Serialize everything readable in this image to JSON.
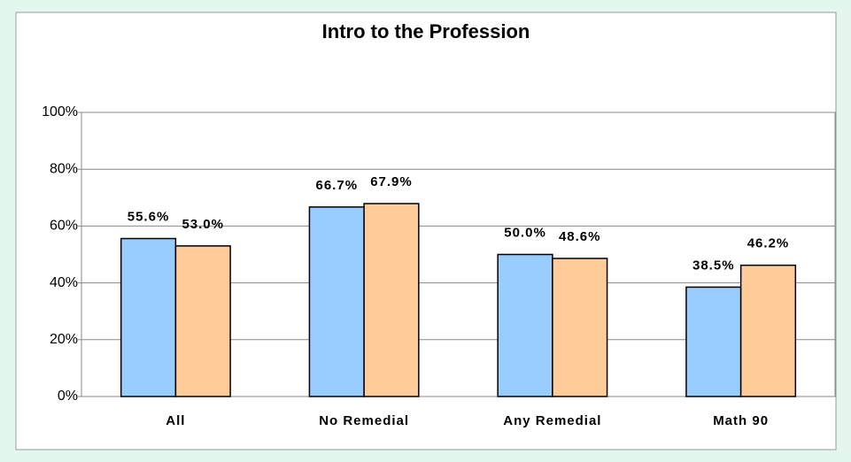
{
  "chart_data": {
    "type": "bar",
    "title": "Intro to the Profession",
    "categories": [
      "All",
      "No Remedial",
      "Any Remedial",
      "Math 90"
    ],
    "series": [
      {
        "color": "#99ccff",
        "values": [
          55.6,
          66.7,
          50.0,
          38.5
        ],
        "value_labels": [
          "55.6%",
          "66.7%",
          "50.0%",
          "38.5%"
        ]
      },
      {
        "color": "#ffcc99",
        "values": [
          53.0,
          67.9,
          48.6,
          46.2
        ],
        "value_labels": [
          "53.0%",
          "67.9%",
          "48.6%",
          "46.2%"
        ]
      }
    ],
    "ylim": [
      0,
      100
    ],
    "yticks": [
      {
        "value": 0,
        "label": "0%"
      },
      {
        "value": 20,
        "label": "20%"
      },
      {
        "value": 40,
        "label": "40%"
      },
      {
        "value": 60,
        "label": "60%"
      },
      {
        "value": 80,
        "label": "80%"
      },
      {
        "value": 100,
        "label": "100%"
      }
    ],
    "grid": true
  }
}
